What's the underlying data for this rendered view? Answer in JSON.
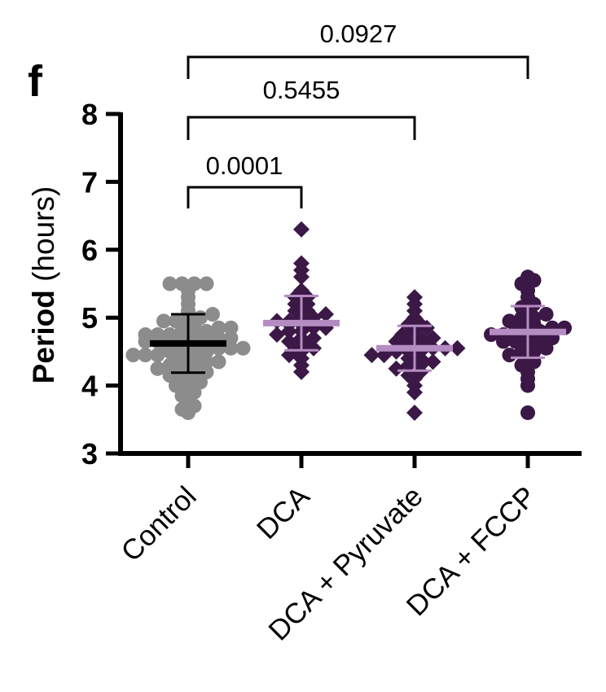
{
  "chart_data": {
    "type": "scatter",
    "panel_label": "f",
    "ylabel": "Period (hours)",
    "ylabel_parts": {
      "bold": "Period",
      "normal": "(hours)"
    },
    "ylim": [
      3,
      8
    ],
    "yticks": [
      "3",
      "4",
      "5",
      "6",
      "7",
      "8"
    ],
    "categories": [
      "Control",
      "DCA",
      "DCA + Pyruvate",
      "DCA + FCCP"
    ],
    "series": [
      {
        "color": "#8c8c8c",
        "line_color": "#000000",
        "marker": "circle",
        "mean": 4.62,
        "sd": 0.43,
        "values": [
          3.6,
          3.65,
          3.7,
          3.8,
          3.85,
          3.9,
          4.0,
          4.0,
          4.05,
          4.1,
          4.1,
          4.15,
          4.2,
          4.2,
          4.2,
          4.25,
          4.3,
          4.3,
          4.3,
          4.35,
          4.35,
          4.4,
          4.4,
          4.4,
          4.45,
          4.45,
          4.45,
          4.5,
          4.5,
          4.5,
          4.5,
          4.55,
          4.55,
          4.55,
          4.6,
          4.6,
          4.6,
          4.6,
          4.6,
          4.65,
          4.65,
          4.65,
          4.65,
          4.7,
          4.7,
          4.7,
          4.7,
          4.75,
          4.75,
          4.75,
          4.8,
          4.8,
          4.8,
          4.85,
          4.85,
          4.9,
          4.9,
          4.95,
          4.95,
          5.0,
          5.0,
          5.05,
          5.1,
          5.2,
          5.3,
          5.4,
          5.5,
          5.5,
          5.5,
          5.5
        ]
      },
      {
        "color": "#3b1846",
        "line_color": "#b58cc2",
        "marker": "diamond",
        "mean": 4.92,
        "sd": 0.4,
        "values": [
          4.2,
          4.3,
          4.4,
          4.45,
          4.5,
          4.55,
          4.6,
          4.6,
          4.65,
          4.7,
          4.7,
          4.75,
          4.8,
          4.8,
          4.85,
          4.85,
          4.9,
          4.9,
          4.9,
          4.95,
          4.95,
          5.0,
          5.0,
          5.05,
          5.1,
          5.1,
          5.2,
          5.2,
          5.3,
          5.3,
          5.4,
          5.6,
          5.7,
          5.8,
          6.3
        ]
      },
      {
        "color": "#3b1846",
        "line_color": "#b58cc2",
        "marker": "diamond",
        "mean": 4.55,
        "sd": 0.33,
        "values": [
          3.6,
          3.9,
          4.0,
          4.1,
          4.15,
          4.2,
          4.25,
          4.3,
          4.3,
          4.35,
          4.4,
          4.4,
          4.45,
          4.45,
          4.5,
          4.5,
          4.5,
          4.55,
          4.55,
          4.55,
          4.6,
          4.6,
          4.6,
          4.65,
          4.65,
          4.7,
          4.7,
          4.75,
          4.8,
          4.85,
          4.9,
          4.9,
          5.0,
          5.1,
          5.2,
          5.3
        ]
      },
      {
        "color": "#3b1846",
        "line_color": "#b58cc2",
        "marker": "circle",
        "mean": 4.79,
        "sd": 0.38,
        "values": [
          3.6,
          4.0,
          4.1,
          4.2,
          4.3,
          4.35,
          4.4,
          4.45,
          4.5,
          4.5,
          4.55,
          4.6,
          4.6,
          4.65,
          4.65,
          4.7,
          4.7,
          4.7,
          4.75,
          4.75,
          4.8,
          4.8,
          4.8,
          4.85,
          4.85,
          4.9,
          4.9,
          4.95,
          5.0,
          5.0,
          5.05,
          5.1,
          5.15,
          5.2,
          5.3,
          5.4,
          5.5,
          5.55,
          5.6
        ]
      }
    ],
    "comparisons": [
      {
        "from": "Control",
        "to": "DCA",
        "p_label": "0.0001"
      },
      {
        "from": "Control",
        "to": "DCA + Pyruvate",
        "p_label": "0.5455"
      },
      {
        "from": "Control",
        "to": "DCA + FCCP",
        "p_label": "0.0927"
      }
    ]
  }
}
